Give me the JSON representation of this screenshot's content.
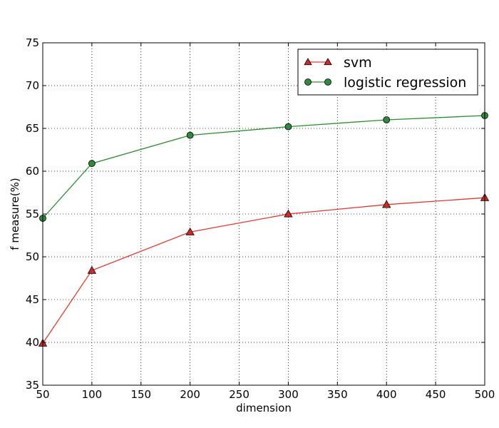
{
  "chart_data": {
    "type": "line",
    "title": "",
    "xlabel": "dimension",
    "ylabel": "f measure(%)",
    "xlim": [
      50,
      500
    ],
    "ylim": [
      35,
      75
    ],
    "xticks": [
      50,
      100,
      150,
      200,
      250,
      300,
      350,
      400,
      450,
      500
    ],
    "yticks": [
      35,
      40,
      45,
      50,
      55,
      60,
      65,
      70,
      75
    ],
    "grid": true,
    "legend_position": "top-right",
    "series": [
      {
        "name": "svm",
        "marker": "triangle",
        "color": "#d62728",
        "line_color": "#e03a2a",
        "x": [
          50,
          100,
          200,
          300,
          400,
          500
        ],
        "y": [
          39.9,
          48.4,
          52.9,
          55.0,
          56.1,
          56.9
        ]
      },
      {
        "name": "logistic regression",
        "marker": "circle",
        "color": "#2e8b3e",
        "line_color": "#2a8f2a",
        "x": [
          50,
          100,
          200,
          300,
          400,
          500
        ],
        "y": [
          54.5,
          60.9,
          64.2,
          65.2,
          66.0,
          66.5
        ]
      }
    ]
  }
}
